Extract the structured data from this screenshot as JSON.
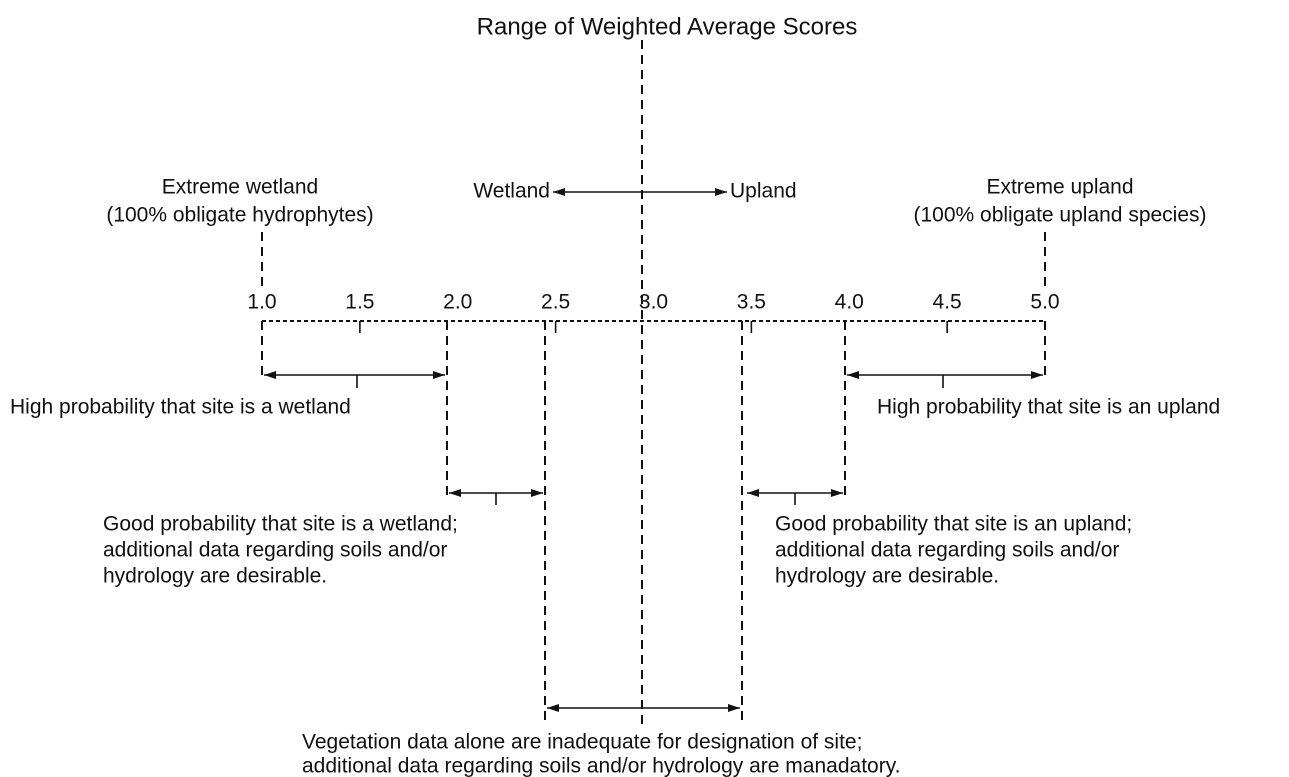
{
  "title": "Range of Weighted Average Scores",
  "direction": {
    "left": "Wetland",
    "right": "Upland"
  },
  "extremes": [
    {
      "lines": [
        "Extreme wetland",
        "(100% obligate hydrophytes)"
      ]
    },
    {
      "lines": [
        "Extreme upland",
        "(100% obligate upland species)"
      ]
    }
  ],
  "scale": {
    "ticks": [
      "1.0",
      "1.5",
      "2.0",
      "2.5",
      "3.0",
      "3.5",
      "4.0",
      "4.5",
      "5.0"
    ]
  },
  "zones": [
    {
      "lines": [
        "High probability that site is a wetland"
      ]
    },
    {
      "lines": [
        "High probability that site is an upland"
      ]
    },
    {
      "lines": [
        "Good probability that site is a wetland;",
        "additional data regarding soils and/or",
        "hydrology are desirable."
      ]
    },
    {
      "lines": [
        "Good probability that site is an upland;",
        "additional data regarding soils and/or",
        "hydrology are desirable."
      ]
    },
    {
      "lines": [
        "Vegetation data alone are inadequate for designation of site;",
        "additional data regarding soils and/or hydrology are manadatory."
      ]
    }
  ]
}
